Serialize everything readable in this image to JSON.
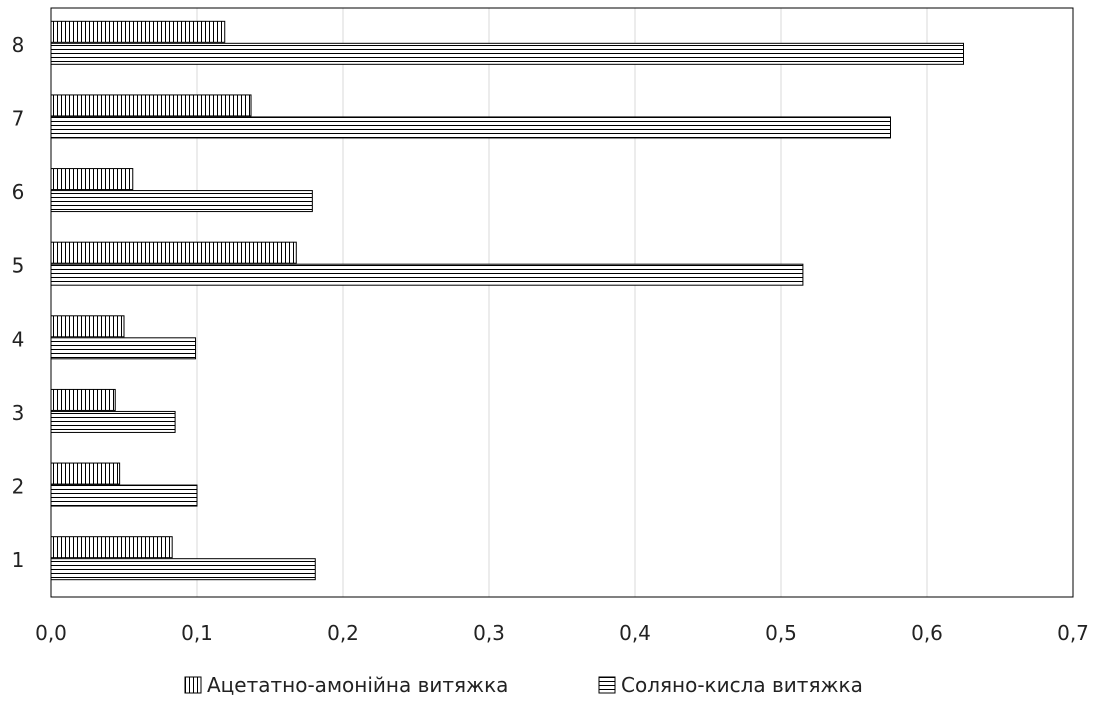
{
  "chart_data": {
    "type": "bar",
    "orientation": "horizontal",
    "categories": [
      "1",
      "2",
      "3",
      "4",
      "5",
      "6",
      "7",
      "8"
    ],
    "series": [
      {
        "name": "Ацетатно-амонійна витяжка",
        "values": [
          0.083,
          0.047,
          0.044,
          0.05,
          0.168,
          0.056,
          0.137,
          0.119
        ],
        "pattern": "vertical-lines"
      },
      {
        "name": "Соляно-кисла витяжка",
        "values": [
          0.181,
          0.1,
          0.085,
          0.099,
          0.515,
          0.179,
          0.575,
          0.625
        ],
        "pattern": "horizontal-lines"
      }
    ],
    "xlim": [
      0,
      0.7
    ],
    "x_ticks": [
      "0,0",
      "0,1",
      "0,2",
      "0,3",
      "0,4",
      "0,5",
      "0,6",
      "0,7"
    ],
    "grid": "vertical",
    "legend_position": "bottom",
    "colors": {
      "line": "#000000",
      "fill": "#ffffff",
      "grid": "#d9d9d9",
      "frame": "#000000"
    }
  }
}
